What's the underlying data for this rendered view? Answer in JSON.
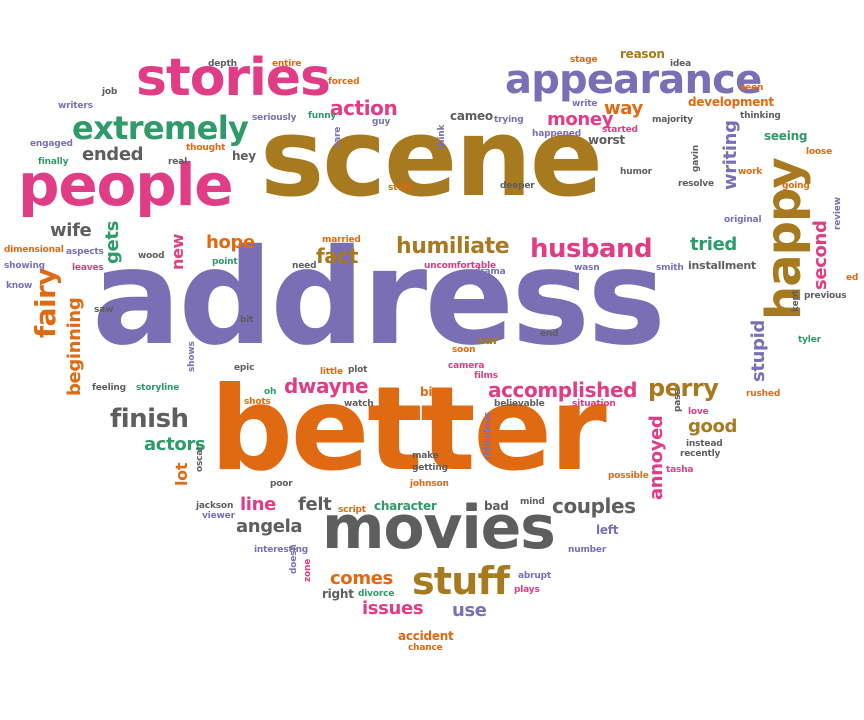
{
  "colors": {
    "purple": "#7a6fb4",
    "orange": "#e06a12",
    "brown": "#a77a1f",
    "pink": "#e13c86",
    "green": "#2f9a6a",
    "gray": "#5e5e5e"
  },
  "words": [
    {
      "text": "address",
      "color": "purple"
    },
    {
      "text": "better",
      "color": "orange"
    },
    {
      "text": "scene",
      "color": "brown"
    },
    {
      "text": "people",
      "color": "pink"
    },
    {
      "text": "stories",
      "color": "pink"
    },
    {
      "text": "appearance",
      "color": "purple"
    },
    {
      "text": "movies",
      "color": "gray"
    },
    {
      "text": "happy",
      "color": "brown"
    },
    {
      "text": "extremely",
      "color": "green"
    },
    {
      "text": "husband",
      "color": "pink"
    },
    {
      "text": "humiliate",
      "color": "brown"
    },
    {
      "text": "stuff",
      "color": "brown"
    },
    {
      "text": "perry",
      "color": "brown"
    },
    {
      "text": "finish",
      "color": "gray"
    },
    {
      "text": "accomplished",
      "color": "pink"
    },
    {
      "text": "couples",
      "color": "gray"
    },
    {
      "text": "dwayne",
      "color": "pink"
    },
    {
      "text": "second",
      "color": "pink"
    },
    {
      "text": "fairy",
      "color": "orange"
    },
    {
      "text": "action",
      "color": "pink"
    },
    {
      "text": "money",
      "color": "pink"
    },
    {
      "text": "ended",
      "color": "gray"
    },
    {
      "text": "beginning",
      "color": "orange"
    },
    {
      "text": "writing",
      "color": "purple"
    },
    {
      "text": "stupid",
      "color": "purple"
    },
    {
      "text": "tried",
      "color": "green"
    },
    {
      "text": "fact",
      "color": "brown"
    },
    {
      "text": "good",
      "color": "brown"
    },
    {
      "text": "annoyed",
      "color": "pink"
    },
    {
      "text": "actors",
      "color": "green"
    },
    {
      "text": "angela",
      "color": "gray"
    },
    {
      "text": "issues",
      "color": "pink"
    },
    {
      "text": "comes",
      "color": "orange"
    },
    {
      "text": "felt",
      "color": "gray"
    },
    {
      "text": "line",
      "color": "pink"
    },
    {
      "text": "wife",
      "color": "gray"
    },
    {
      "text": "gets",
      "color": "green"
    },
    {
      "text": "new",
      "color": "pink"
    },
    {
      "text": "hope",
      "color": "orange"
    },
    {
      "text": "use",
      "color": "purple"
    },
    {
      "text": "way",
      "color": "orange"
    },
    {
      "text": "lot",
      "color": "orange"
    },
    {
      "text": "development",
      "color": "orange"
    },
    {
      "text": "cameo",
      "color": "gray"
    },
    {
      "text": "character",
      "color": "green"
    },
    {
      "text": "seeing",
      "color": "green"
    },
    {
      "text": "installment",
      "color": "gray"
    },
    {
      "text": "reason",
      "color": "brown"
    },
    {
      "text": "worst",
      "color": "gray"
    },
    {
      "text": "left",
      "color": "purple"
    },
    {
      "text": "car",
      "color": "brown"
    },
    {
      "text": "big",
      "color": "orange"
    },
    {
      "text": "bad",
      "color": "gray"
    },
    {
      "text": "hey",
      "color": "gray"
    },
    {
      "text": "accident",
      "color": "orange"
    },
    {
      "text": "right",
      "color": "gray"
    },
    {
      "text": "depth",
      "color": "gray"
    },
    {
      "text": "entire",
      "color": "orange"
    },
    {
      "text": "job",
      "color": "gray"
    },
    {
      "text": "forced",
      "color": "orange"
    },
    {
      "text": "writers",
      "color": "purple"
    },
    {
      "text": "seriously",
      "color": "purple"
    },
    {
      "text": "funny",
      "color": "green"
    },
    {
      "text": "guy",
      "color": "purple"
    },
    {
      "text": "engaged",
      "color": "purple"
    },
    {
      "text": "finally",
      "color": "green"
    },
    {
      "text": "thought",
      "color": "orange"
    },
    {
      "text": "real",
      "color": "gray"
    },
    {
      "text": "care",
      "color": "purple"
    },
    {
      "text": "think",
      "color": "purple"
    },
    {
      "text": "trying",
      "color": "purple"
    },
    {
      "text": "happened",
      "color": "purple"
    },
    {
      "text": "started",
      "color": "pink"
    },
    {
      "text": "write",
      "color": "purple"
    },
    {
      "text": "stage",
      "color": "orange"
    },
    {
      "text": "idea",
      "color": "gray"
    },
    {
      "text": "seen",
      "color": "orange"
    },
    {
      "text": "majority",
      "color": "gray"
    },
    {
      "text": "thinking",
      "color": "gray"
    },
    {
      "text": "loose",
      "color": "orange"
    },
    {
      "text": "going",
      "color": "orange"
    },
    {
      "text": "review",
      "color": "purple"
    },
    {
      "text": "original",
      "color": "purple"
    },
    {
      "text": "work",
      "color": "orange"
    },
    {
      "text": "gavin",
      "color": "gray"
    },
    {
      "text": "resolve",
      "color": "gray"
    },
    {
      "text": "humor",
      "color": "gray"
    },
    {
      "text": "story",
      "color": "orange"
    },
    {
      "text": "deeper",
      "color": "gray"
    },
    {
      "text": "drama",
      "color": "purple"
    },
    {
      "text": "uncomfortable",
      "color": "pink"
    },
    {
      "text": "wasn",
      "color": "purple"
    },
    {
      "text": "smith",
      "color": "purple"
    },
    {
      "text": "married",
      "color": "orange"
    },
    {
      "text": "need",
      "color": "gray"
    },
    {
      "text": "point",
      "color": "green"
    },
    {
      "text": "wood",
      "color": "gray"
    },
    {
      "text": "dimensional",
      "color": "orange"
    },
    {
      "text": "aspects",
      "color": "purple"
    },
    {
      "text": "showing",
      "color": "purple"
    },
    {
      "text": "leaves",
      "color": "pink"
    },
    {
      "text": "know",
      "color": "purple"
    },
    {
      "text": "saw",
      "color": "gray"
    },
    {
      "text": "bit",
      "color": "gray"
    },
    {
      "text": "end",
      "color": "gray"
    },
    {
      "text": "soon",
      "color": "orange"
    },
    {
      "text": "little",
      "color": "orange"
    },
    {
      "text": "plot",
      "color": "gray"
    },
    {
      "text": "epic",
      "color": "gray"
    },
    {
      "text": "camera",
      "color": "pink"
    },
    {
      "text": "films",
      "color": "pink"
    },
    {
      "text": "feeling",
      "color": "gray"
    },
    {
      "text": "storyline",
      "color": "green"
    },
    {
      "text": "shows",
      "color": "purple"
    },
    {
      "text": "oh",
      "color": "green"
    },
    {
      "text": "shots",
      "color": "orange"
    },
    {
      "text": "watch",
      "color": "gray"
    },
    {
      "text": "believable",
      "color": "gray"
    },
    {
      "text": "situation",
      "color": "pink"
    },
    {
      "text": "pass",
      "color": "gray"
    },
    {
      "text": "love",
      "color": "pink"
    },
    {
      "text": "rushed",
      "color": "orange"
    },
    {
      "text": "instead",
      "color": "gray"
    },
    {
      "text": "recently",
      "color": "gray"
    },
    {
      "text": "tasha",
      "color": "pink"
    },
    {
      "text": "possible",
      "color": "orange"
    },
    {
      "text": "previous",
      "color": "gray"
    },
    {
      "text": "kept",
      "color": "gray"
    },
    {
      "text": "tyler",
      "color": "green"
    },
    {
      "text": "ed",
      "color": "orange"
    },
    {
      "text": "jackson",
      "color": "gray"
    },
    {
      "text": "oscar",
      "color": "gray"
    },
    {
      "text": "viewer",
      "color": "purple"
    },
    {
      "text": "poor",
      "color": "gray"
    },
    {
      "text": "make",
      "color": "gray"
    },
    {
      "text": "getting",
      "color": "gray"
    },
    {
      "text": "johnson",
      "color": "orange"
    },
    {
      "text": "ridiculous",
      "color": "purple"
    },
    {
      "text": "script",
      "color": "orange"
    },
    {
      "text": "mind",
      "color": "gray"
    },
    {
      "text": "interesting",
      "color": "purple"
    },
    {
      "text": "doesn",
      "color": "purple"
    },
    {
      "text": "zone",
      "color": "pink"
    },
    {
      "text": "divorce",
      "color": "green"
    },
    {
      "text": "abrupt",
      "color": "purple"
    },
    {
      "text": "plays",
      "color": "pink"
    },
    {
      "text": "number",
      "color": "purple"
    },
    {
      "text": "chance",
      "color": "orange"
    }
  ]
}
